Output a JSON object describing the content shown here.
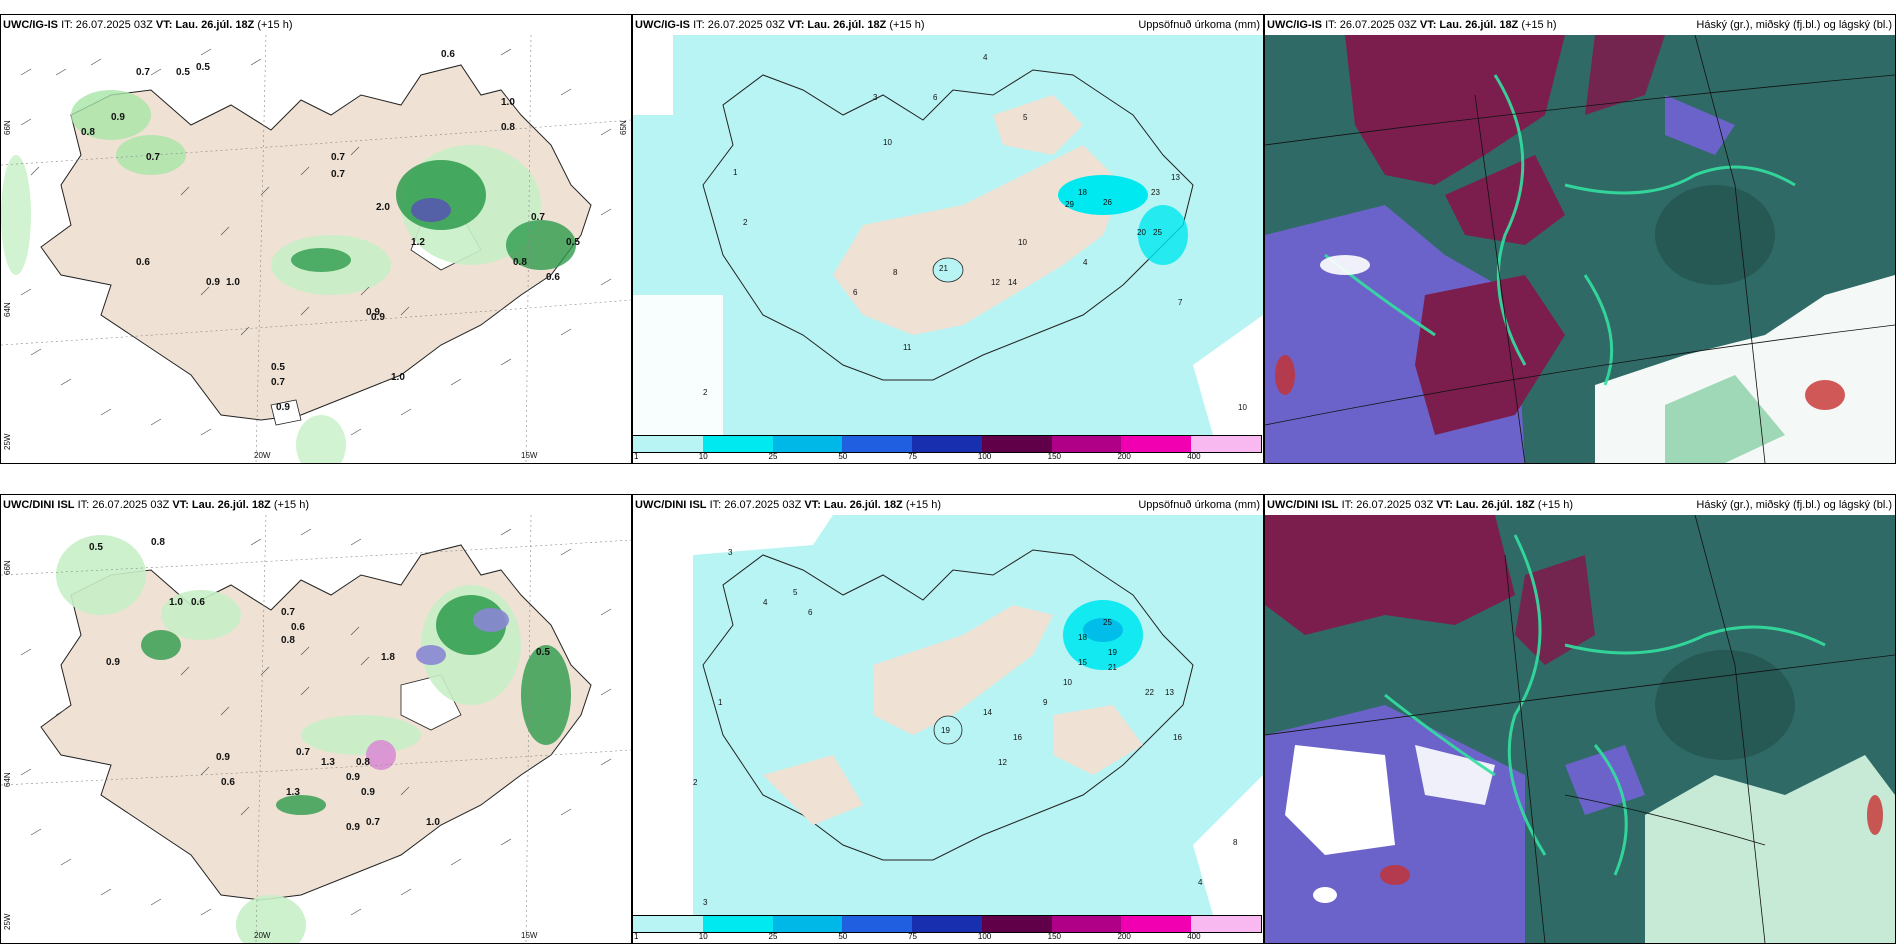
{
  "panels": [
    {
      "model": "UWC/IG-IS",
      "it": "IT: 26.07.2025 03Z",
      "vt_label": "VT:",
      "vt": "Lau. 26.júl. 18Z",
      "step": "(+15 h)",
      "right": ""
    },
    {
      "model": "UWC/IG-IS",
      "it": "IT: 26.07.2025 03Z",
      "vt_label": "VT:",
      "vt": "Lau. 26.júl. 18Z",
      "step": "(+15 h)",
      "right": "Uppsöfnuð úrkoma (mm)"
    },
    {
      "model": "UWC/IG-IS",
      "it": "IT: 26.07.2025 03Z",
      "vt_label": "VT:",
      "vt": "Lau. 26.júl. 18Z",
      "step": "(+15 h)",
      "right": "Háský (gr.), miðský (fj.bl.) og lágský (bl.)"
    },
    {
      "model": "UWC/DINI ISL",
      "it": "IT: 26.07.2025 03Z",
      "vt_label": "VT:",
      "vt": "Lau. 26.júl. 18Z",
      "step": "(+15 h)",
      "right": ""
    },
    {
      "model": "UWC/DINI ISL",
      "it": "IT: 26.07.2025 03Z",
      "vt_label": "VT:",
      "vt": "Lau. 26.júl. 18Z",
      "step": "(+15 h)",
      "right": "Uppsöfnuð úrkoma (mm)"
    },
    {
      "model": "UWC/DINI ISL",
      "it": "IT: 26.07.2025 03Z",
      "vt_label": "VT:",
      "vt": "Lau. 26.júl. 18Z",
      "step": "(+15 h)",
      "right": "Háský (gr.), miðský (fj.bl.) og lágský (bl.)"
    }
  ],
  "axis_labels": {
    "lat_66": "66N",
    "lat_64": "64N",
    "lat_65": "65N",
    "lon_20": "20W",
    "lon_15": "15W",
    "lon_25": "25W"
  },
  "colorbar": {
    "ticks": [
      "1",
      "10",
      "25",
      "50",
      "75",
      "100",
      "150",
      "200",
      "400"
    ],
    "colors": [
      "#b8f4f4",
      "#00e8f0",
      "#00b8e8",
      "#2060e0",
      "#1830b0",
      "#600048",
      "#b00088",
      "#f000b0",
      "#f8b8f0"
    ]
  },
  "precip_top": [
    "0.5",
    "0.7",
    "0.5",
    "0.6",
    "0.7",
    "0.7",
    "1.0",
    "0.8",
    "0.9",
    "0.8",
    "0.7",
    "0.6",
    "0.9",
    "1.0",
    "0.9",
    "0.5",
    "0.7",
    "0.9",
    "1.0",
    "2.0",
    "1.2",
    "0.7",
    "0.6",
    "0.5",
    "0.8",
    "0.9"
  ],
  "precip_bottom": [
    "0.5",
    "0.8",
    "1.0",
    "0.6",
    "0.9",
    "0.7",
    "0.6",
    "0.8",
    "1.8",
    "0.9",
    "0.7",
    "1.3",
    "0.9",
    "0.8",
    "0.9",
    "1.3",
    "0.6",
    "0.9",
    "0.7",
    "0.5",
    "1.0"
  ],
  "accum_top": [
    "4",
    "3",
    "6",
    "5",
    "2",
    "1",
    "10",
    "8",
    "6",
    "21",
    "12",
    "14",
    "18",
    "29",
    "26",
    "23",
    "20",
    "25",
    "13",
    "4",
    "10",
    "7",
    "11",
    "2",
    "10"
  ],
  "accum_bottom": [
    "3",
    "2",
    "4",
    "5",
    "6",
    "1",
    "19",
    "14",
    "16",
    "12",
    "15",
    "18",
    "25",
    "19",
    "21",
    "22",
    "13",
    "16",
    "10",
    "9",
    "4",
    "8",
    "3"
  ]
}
